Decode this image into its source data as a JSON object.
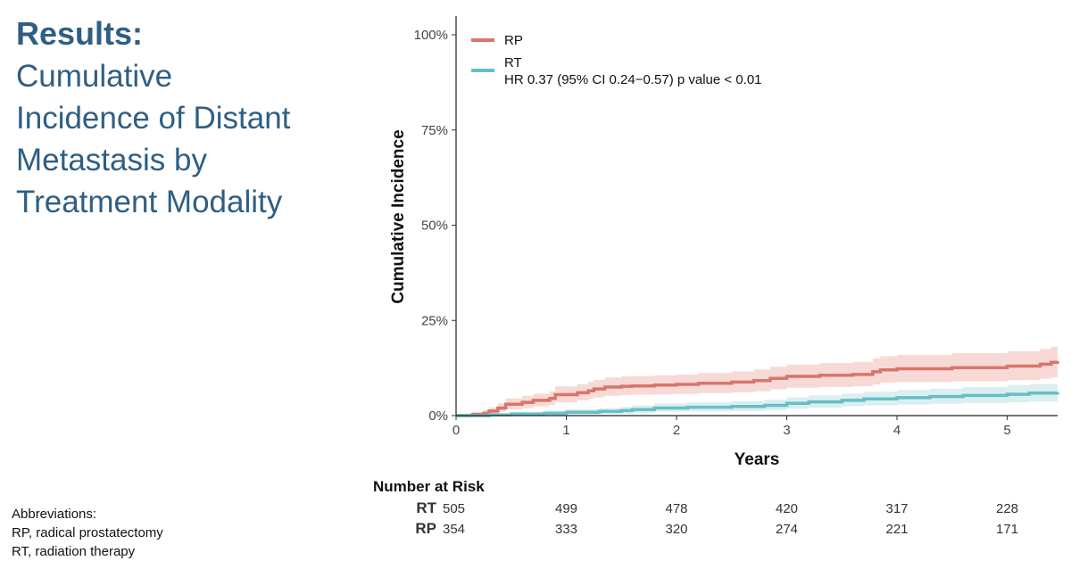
{
  "slide": {
    "heading": "Results:",
    "subtitle_lines": [
      "Cumulative",
      "Incidence of Distant",
      "Metastasis by",
      "Treatment Modality"
    ]
  },
  "abbreviations": {
    "title": "Abbreviations:",
    "items": [
      "RP, radical prostatectomy",
      "RT, radiation therapy"
    ]
  },
  "colors": {
    "rp": "#d9756c",
    "rt": "#67bfc4",
    "rp_band": "#f4cdc8",
    "rt_band": "#cfe9ec"
  },
  "chart_data": {
    "type": "line",
    "xlabel": "Years",
    "ylabel": "Cumulative Incidence",
    "xlim": [
      0,
      5.5
    ],
    "ylim": [
      0,
      1
    ],
    "x_ticks": [
      0,
      1,
      2,
      3,
      4,
      5
    ],
    "x_tick_labels": [
      "0",
      "1",
      "2",
      "3",
      "4",
      "5"
    ],
    "y_ticks": [
      0,
      0.25,
      0.5,
      0.75,
      1
    ],
    "y_tick_labels": [
      "0%",
      "25%",
      "50%",
      "75%",
      "100%"
    ],
    "grid": false,
    "legend_position": "top-left",
    "annotation": "HR 0.37 (95% CI 0.24−0.57) p value < 0.01",
    "series": [
      {
        "name": "RP",
        "x": [
          0,
          0.15,
          0.25,
          0.3,
          0.38,
          0.45,
          0.6,
          0.7,
          0.85,
          0.9,
          1.1,
          1.2,
          1.25,
          1.35,
          1.5,
          1.6,
          1.8,
          2.0,
          2.2,
          2.5,
          2.7,
          2.85,
          3.0,
          3.3,
          3.6,
          3.78,
          3.85,
          4.0,
          4.5,
          5.0,
          5.3,
          5.4,
          5.5
        ],
        "y": [
          0,
          0.003,
          0.006,
          0.012,
          0.02,
          0.03,
          0.035,
          0.04,
          0.045,
          0.055,
          0.06,
          0.065,
          0.07,
          0.075,
          0.077,
          0.078,
          0.08,
          0.082,
          0.085,
          0.088,
          0.092,
          0.098,
          0.103,
          0.106,
          0.108,
          0.115,
          0.12,
          0.123,
          0.126,
          0.13,
          0.135,
          0.14,
          0.143
        ],
        "ci_lower": [
          0,
          0.0,
          0.001,
          0.005,
          0.01,
          0.016,
          0.02,
          0.024,
          0.028,
          0.035,
          0.04,
          0.044,
          0.048,
          0.052,
          0.054,
          0.055,
          0.056,
          0.057,
          0.059,
          0.061,
          0.064,
          0.069,
          0.073,
          0.075,
          0.077,
          0.082,
          0.086,
          0.088,
          0.09,
          0.093,
          0.097,
          0.1,
          0.102
        ],
        "ci_upper": [
          0,
          0.01,
          0.015,
          0.022,
          0.032,
          0.045,
          0.052,
          0.058,
          0.064,
          0.077,
          0.083,
          0.089,
          0.094,
          0.1,
          0.103,
          0.104,
          0.106,
          0.108,
          0.112,
          0.116,
          0.121,
          0.128,
          0.134,
          0.138,
          0.141,
          0.15,
          0.156,
          0.16,
          0.164,
          0.169,
          0.175,
          0.181,
          0.185
        ]
      },
      {
        "name": "RT",
        "x": [
          0,
          0.3,
          0.5,
          0.8,
          1.0,
          1.3,
          1.5,
          1.6,
          1.8,
          2.1,
          2.5,
          2.8,
          3.0,
          3.2,
          3.5,
          3.7,
          4.0,
          4.3,
          4.6,
          5.0,
          5.2,
          5.5
        ],
        "y": [
          0,
          0.002,
          0.004,
          0.006,
          0.009,
          0.011,
          0.013,
          0.016,
          0.02,
          0.022,
          0.024,
          0.027,
          0.032,
          0.036,
          0.04,
          0.044,
          0.047,
          0.05,
          0.053,
          0.056,
          0.059,
          0.061
        ],
        "ci_lower": [
          0,
          0.0,
          0.0,
          0.001,
          0.003,
          0.004,
          0.005,
          0.007,
          0.01,
          0.011,
          0.012,
          0.014,
          0.018,
          0.021,
          0.024,
          0.027,
          0.029,
          0.031,
          0.033,
          0.035,
          0.037,
          0.038
        ],
        "ci_upper": [
          0,
          0.005,
          0.01,
          0.013,
          0.017,
          0.02,
          0.023,
          0.027,
          0.032,
          0.035,
          0.038,
          0.042,
          0.048,
          0.053,
          0.058,
          0.063,
          0.067,
          0.071,
          0.075,
          0.08,
          0.083,
          0.086
        ]
      }
    ],
    "risk_table": {
      "title": "Number at Risk",
      "times": [
        0,
        1,
        2,
        3,
        4,
        5
      ],
      "rows": [
        {
          "label": "RT",
          "values": [
            "505",
            "499",
            "478",
            "420",
            "317",
            "228"
          ]
        },
        {
          "label": "RP",
          "values": [
            "354",
            "333",
            "320",
            "274",
            "221",
            "171"
          ]
        }
      ]
    }
  }
}
